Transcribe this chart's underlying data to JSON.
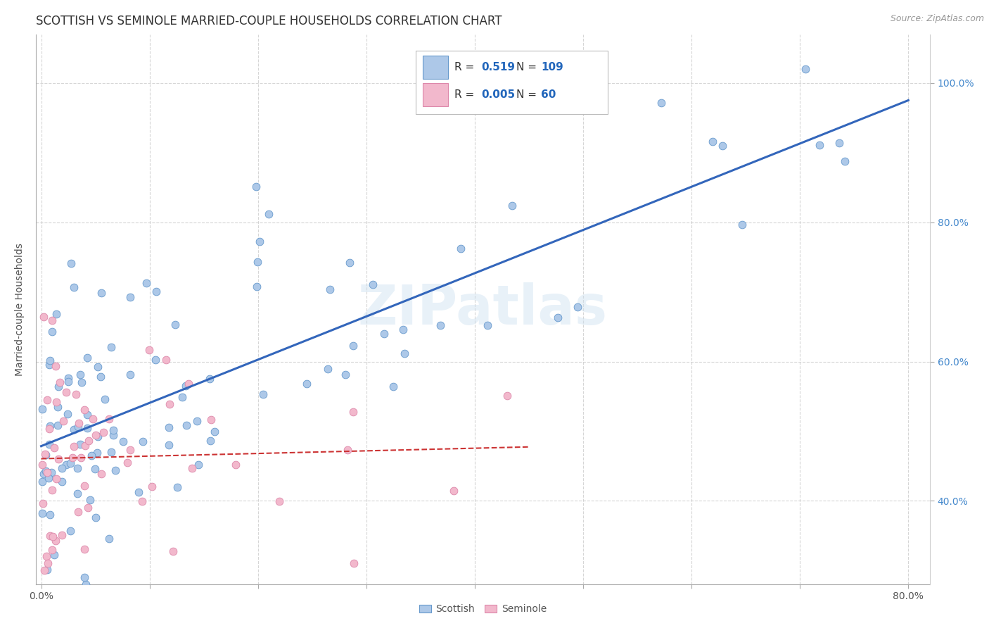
{
  "title": "SCOTTISH VS SEMINOLE MARRIED-COUPLE HOUSEHOLDS CORRELATION CHART",
  "source": "Source: ZipAtlas.com",
  "ylabel": "Married-couple Households",
  "xlim": [
    -0.005,
    0.82
  ],
  "ylim": [
    0.28,
    1.07
  ],
  "xtick_positions": [
    0.0,
    0.1,
    0.2,
    0.3,
    0.4,
    0.5,
    0.6,
    0.7,
    0.8
  ],
  "xticklabels": [
    "0.0%",
    "",
    "",
    "",
    "",
    "",
    "",
    "",
    "80.0%"
  ],
  "ytick_positions": [
    0.4,
    0.6,
    0.8,
    1.0
  ],
  "yticklabels": [
    "40.0%",
    "60.0%",
    "80.0%",
    "100.0%"
  ],
  "watermark": "ZIPatlas",
  "legend_R_scottish": "0.519",
  "legend_N_scottish": "109",
  "legend_R_seminole": "0.005",
  "legend_N_seminole": "60",
  "scottish_color": "#adc8e8",
  "scottish_edge": "#6699cc",
  "seminole_color": "#f2b8cc",
  "seminole_edge": "#dd88aa",
  "trend_scottish_color": "#3366bb",
  "trend_seminole_color": "#cc3333",
  "background_color": "#ffffff",
  "grid_color": "#cccccc",
  "title_fontsize": 12,
  "axis_label_fontsize": 10,
  "tick_fontsize": 10,
  "marker_size": 60
}
